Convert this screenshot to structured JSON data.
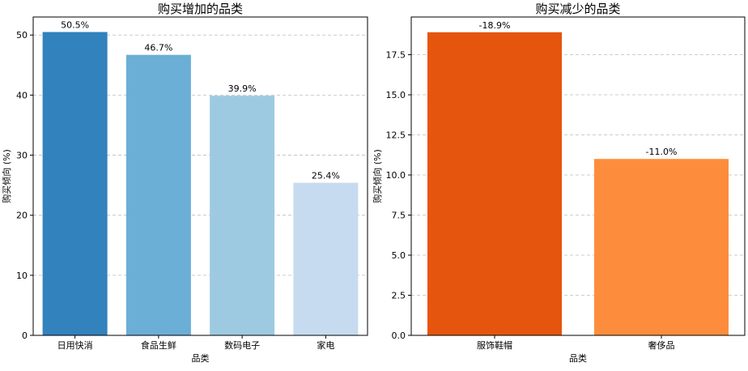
{
  "chart_data": [
    {
      "type": "bar",
      "title": "购买增加的品类",
      "xlabel": "品类",
      "ylabel": "购买倾向 (%)",
      "categories": [
        "日用快消",
        "食品生鲜",
        "数码电子",
        "家电"
      ],
      "values": [
        50.5,
        46.7,
        39.9,
        25.4
      ],
      "value_labels": [
        "50.5%",
        "46.7%",
        "39.9%",
        "25.4%"
      ],
      "colors": [
        "#3182bd",
        "#6baed6",
        "#9ecae1",
        "#c6dbef"
      ],
      "ylim": [
        0,
        53
      ],
      "yticks": [
        0,
        10,
        20,
        30,
        40,
        50
      ],
      "ytick_labels": [
        "0",
        "10",
        "20",
        "30",
        "40",
        "50"
      ],
      "grid": "y"
    },
    {
      "type": "bar",
      "title": "购买减少的品类",
      "xlabel": "品类",
      "ylabel": "购买倾向 (%)",
      "categories": [
        "服饰鞋帽",
        "奢侈品"
      ],
      "values": [
        18.9,
        11.0
      ],
      "value_labels": [
        "-18.9%",
        "-11.0%"
      ],
      "colors": [
        "#e6550d",
        "#fd8d3c"
      ],
      "ylim": [
        0,
        19.85
      ],
      "yticks": [
        0,
        2.5,
        5,
        7.5,
        10,
        12.5,
        15,
        17.5
      ],
      "ytick_labels": [
        "0.0",
        "2.5",
        "5.0",
        "7.5",
        "10.0",
        "12.5",
        "15.0",
        "17.5"
      ],
      "grid": "y"
    }
  ]
}
